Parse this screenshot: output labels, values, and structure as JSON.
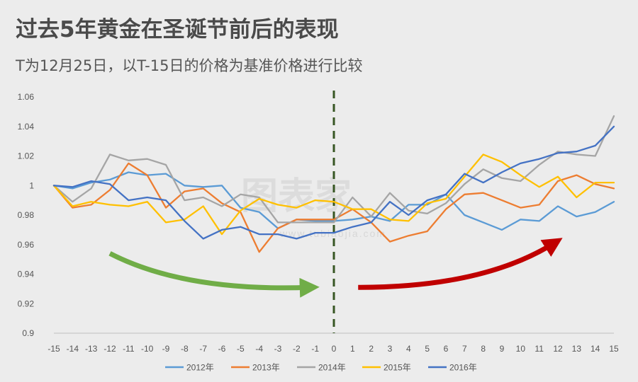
{
  "title": "过去5年黄金在圣诞节前后的表现",
  "subtitle": "T为12月25日，以T-15日的价格为基准价格进行比较",
  "watermark": {
    "main": "图表家",
    "sub": "www.tubiaojia.com"
  },
  "chart_data": {
    "type": "line",
    "x": [
      -15,
      -14,
      -13,
      -12,
      -11,
      -10,
      -9,
      -8,
      -7,
      -6,
      -5,
      -4,
      -3,
      -2,
      -1,
      0,
      1,
      2,
      3,
      4,
      5,
      6,
      7,
      8,
      9,
      10,
      11,
      12,
      13,
      14,
      15
    ],
    "ylim": [
      0.9,
      1.06
    ],
    "yticks": [
      0.9,
      0.92,
      0.94,
      0.96,
      0.98,
      1,
      1.02,
      1.04,
      1.06
    ],
    "ytick_labels": [
      "0.9",
      "0.92",
      "0.94",
      "0.96",
      "0.98",
      "1",
      "1.02",
      "1.04",
      "1.06"
    ],
    "reference_line_x": 0,
    "arrows": [
      {
        "color": "#70ad47",
        "direction": "down-right",
        "segment": "before"
      },
      {
        "color": "#c00000",
        "direction": "up-right",
        "segment": "after"
      }
    ],
    "series": [
      {
        "name": "2012年",
        "color": "#5b9bd5",
        "values": [
          1.0,
          0.998,
          1.002,
          1.004,
          1.009,
          1.007,
          1.008,
          1.0,
          0.999,
          1.0,
          0.985,
          0.982,
          0.971,
          0.977,
          0.976,
          0.976,
          0.977,
          0.979,
          0.976,
          0.987,
          0.987,
          0.994,
          0.98,
          0.975,
          0.97,
          0.977,
          0.976,
          0.986,
          0.979,
          0.982,
          0.989
        ]
      },
      {
        "name": "2013年",
        "color": "#ed7d31",
        "values": [
          1.0,
          0.985,
          0.987,
          0.997,
          1.015,
          1.007,
          0.985,
          0.996,
          0.998,
          0.988,
          0.982,
          0.955,
          0.971,
          0.977,
          0.977,
          0.977,
          0.984,
          0.975,
          0.962,
          0.966,
          0.969,
          0.984,
          0.994,
          0.995,
          0.99,
          0.985,
          0.987,
          1.003,
          1.007,
          1.001,
          0.998
        ]
      },
      {
        "name": "2014年",
        "color": "#a5a5a5",
        "values": [
          1.0,
          0.989,
          0.998,
          1.021,
          1.017,
          1.018,
          1.014,
          0.99,
          0.992,
          0.986,
          0.994,
          0.992,
          0.975,
          0.975,
          0.975,
          0.975,
          0.992,
          0.979,
          0.995,
          0.983,
          0.981,
          0.988,
          1.001,
          1.011,
          1.005,
          1.003,
          1.014,
          1.023,
          1.021,
          1.02,
          1.047
        ]
      },
      {
        "name": "2015年",
        "color": "#ffc000",
        "values": [
          1.0,
          0.986,
          0.989,
          0.987,
          0.986,
          0.989,
          0.975,
          0.977,
          0.986,
          0.967,
          0.983,
          0.991,
          0.987,
          0.985,
          0.99,
          0.989,
          0.984,
          0.984,
          0.977,
          0.976,
          0.988,
          0.991,
          1.006,
          1.021,
          1.016,
          1.007,
          0.999,
          1.006,
          0.992,
          1.002,
          1.002
        ]
      },
      {
        "name": "2016年",
        "color": "#4472c4",
        "values": [
          1.0,
          0.999,
          1.003,
          1.001,
          0.99,
          0.992,
          0.99,
          0.976,
          0.964,
          0.97,
          0.972,
          0.967,
          0.967,
          0.964,
          0.968,
          0.968,
          0.972,
          0.975,
          0.989,
          0.98,
          0.99,
          0.994,
          1.008,
          1.002,
          1.009,
          1.015,
          1.018,
          1.022,
          1.023,
          1.027,
          1.04
        ]
      }
    ]
  }
}
